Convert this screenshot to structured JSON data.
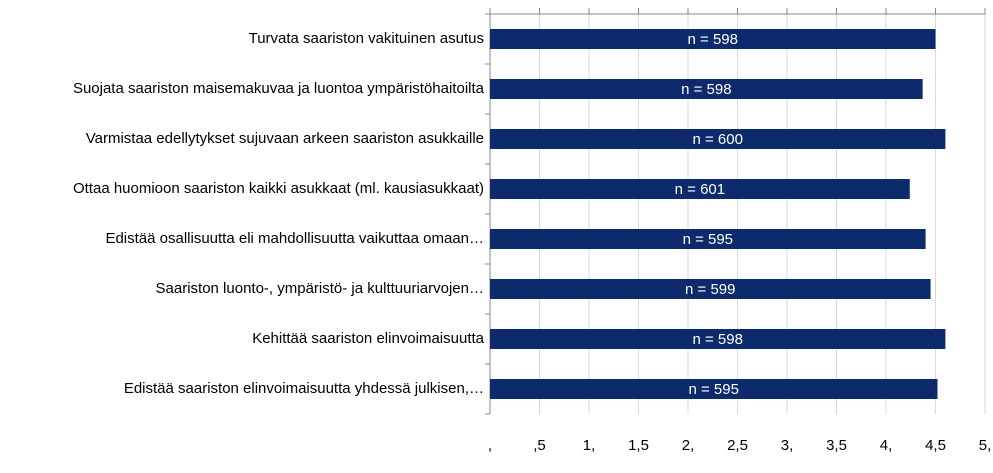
{
  "chart_data": {
    "type": "hbar",
    "categories": [
      "Turvata saariston vakituinen asutus",
      "Suojata saariston maisemakuvaa ja luontoa ympäristöhaitoilta",
      "Varmistaa edellytykset sujuvaan arkeen saariston asukkaille",
      "Ottaa huomioon saariston kaikki asukkaat (ml. kausiasukkaat)",
      "Edistää osallisuutta eli mahdollisuutta vaikuttaa omaan…",
      "Saariston luonto-, ympäristö- ja kulttuuriarvojen…",
      "Kehittää saariston elinvoimaisuutta",
      "Edistää saariston elinvoimaisuutta yhdessä julkisen,…"
    ],
    "values": [
      4.5,
      4.37,
      4.6,
      4.24,
      4.4,
      4.45,
      4.6,
      4.52
    ],
    "annotations": [
      "n = 598",
      "n = 598",
      "n = 600",
      "n = 601",
      "n = 595",
      "n = 599",
      "n = 598",
      "n = 595"
    ],
    "color": "#0c2a6c",
    "xlim": [
      0,
      5
    ],
    "xticks": [
      {
        "value": 0,
        "label": ","
      },
      {
        "value": 0.5,
        "label": ",5"
      },
      {
        "value": 1,
        "label": "1,"
      },
      {
        "value": 1.5,
        "label": "1,5"
      },
      {
        "value": 2,
        "label": "2,"
      },
      {
        "value": 2.5,
        "label": "2,5"
      },
      {
        "value": 3,
        "label": "3,"
      },
      {
        "value": 3.5,
        "label": "3,5"
      },
      {
        "value": 4,
        "label": "4,"
      },
      {
        "value": 4.5,
        "label": "4,5"
      },
      {
        "value": 5,
        "label": "5,"
      }
    ],
    "grid": true
  }
}
